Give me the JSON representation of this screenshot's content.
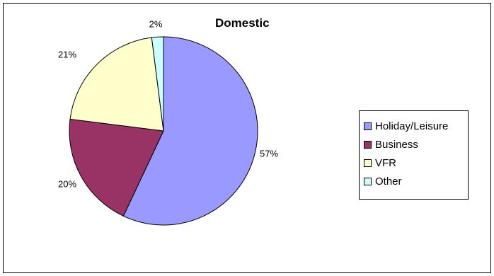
{
  "chart_data": {
    "type": "pie",
    "title": "Domestic",
    "slices": [
      {
        "label": "Holiday/Leisure",
        "value": 57,
        "display": "57%",
        "color": "#9999FF"
      },
      {
        "label": "Business",
        "value": 20,
        "display": "20%",
        "color": "#993366"
      },
      {
        "label": "VFR",
        "value": 21,
        "display": "21%",
        "color": "#FFFFCC"
      },
      {
        "label": "Other",
        "value": 2,
        "display": "2%",
        "color": "#CCFFFF"
      }
    ],
    "legend_position": "right"
  }
}
